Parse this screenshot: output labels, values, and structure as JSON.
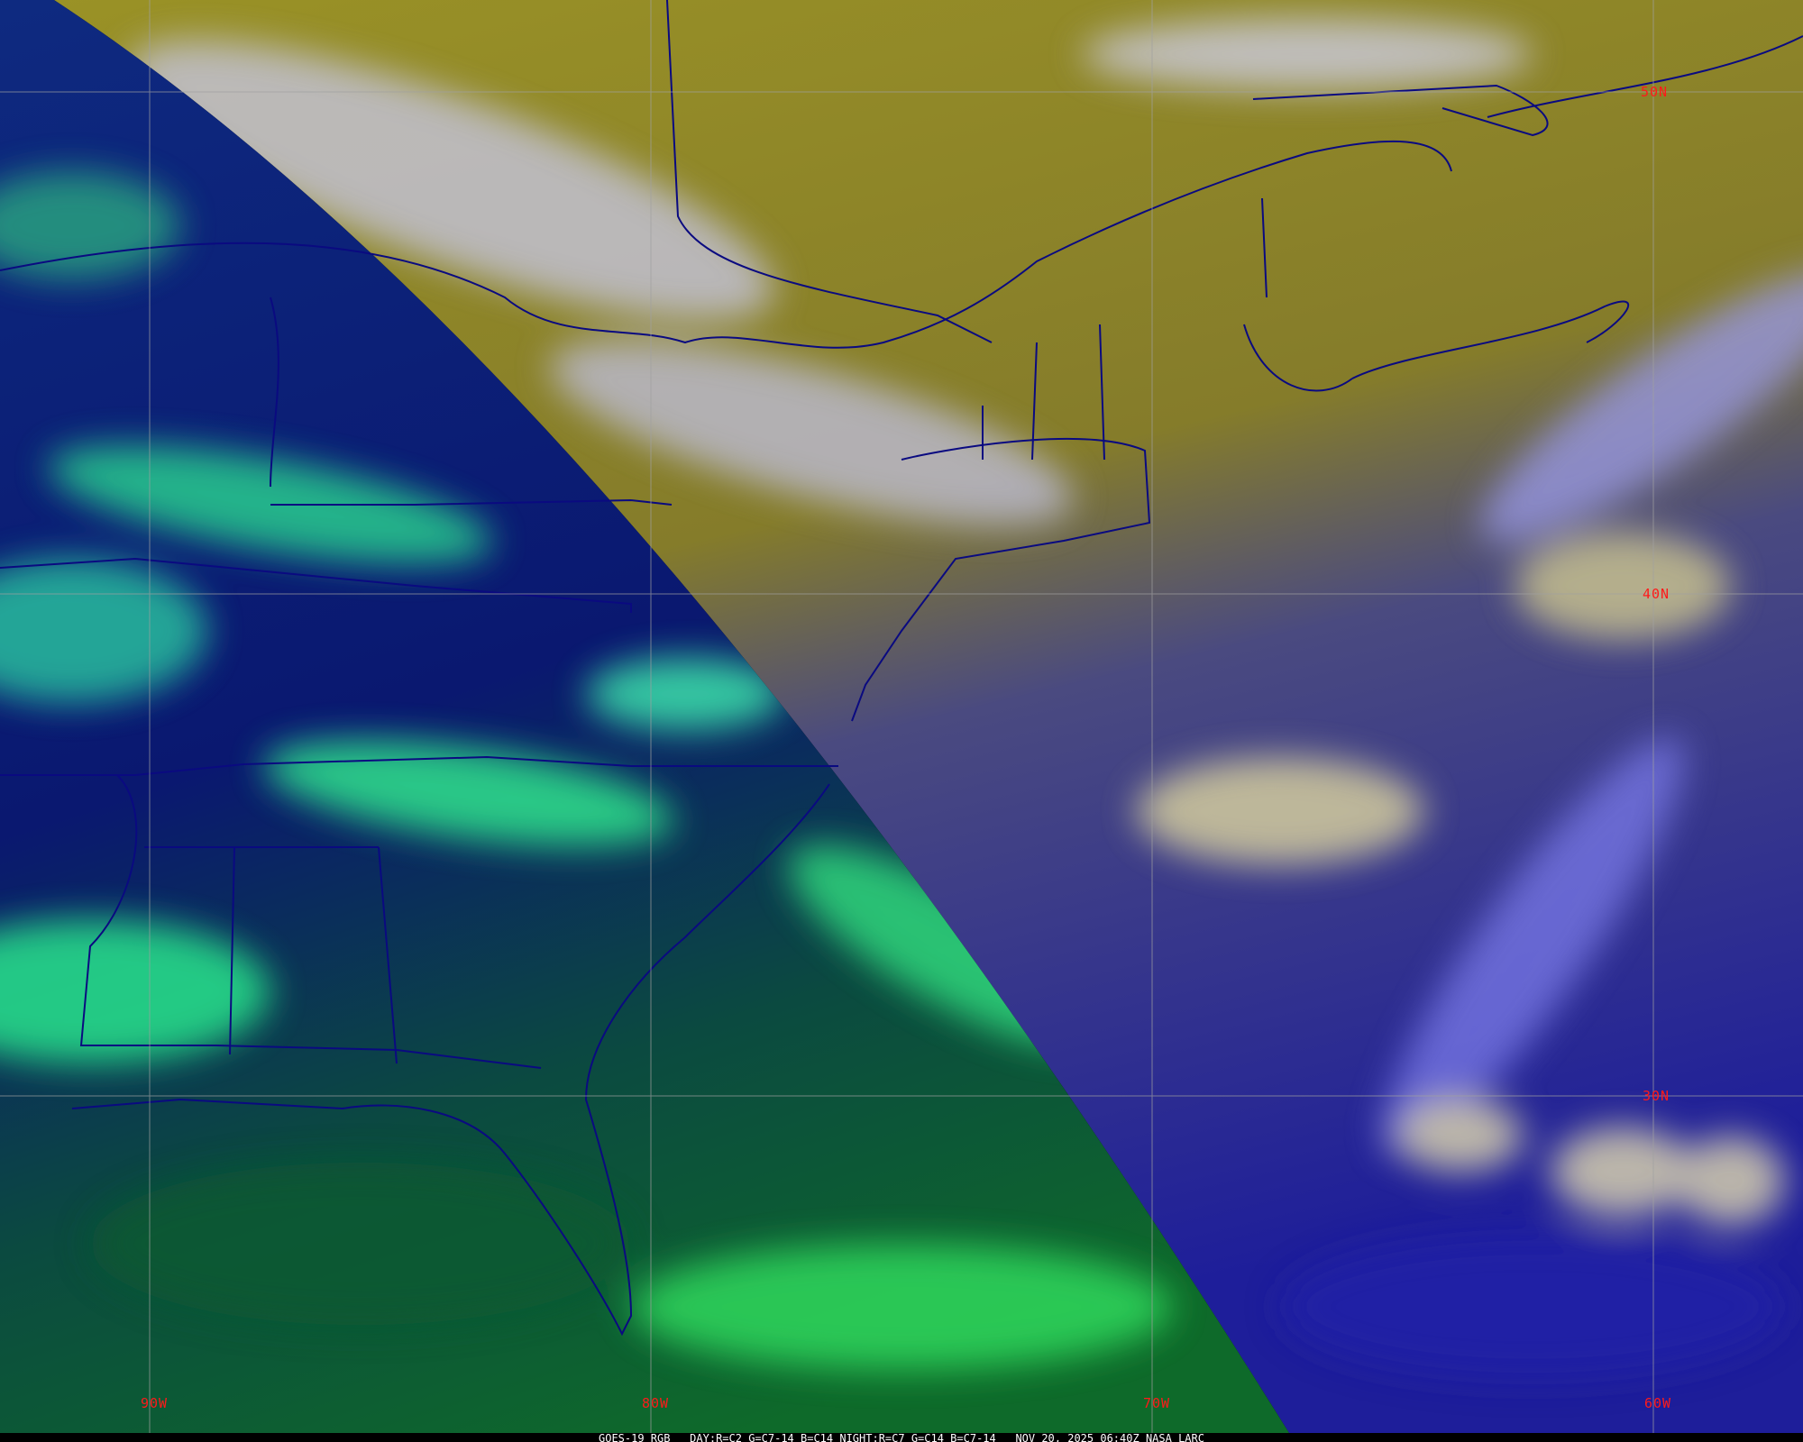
{
  "map": {
    "caption": {
      "satellite": "GOES-19 RGB",
      "day_recipe": "DAY:R=C2 G=C7-14 B=C14",
      "night_recipe": "NIGHT:R=C7 G=C14 B=C7-14",
      "timestamp": "NOV 20, 2025 06:40Z",
      "credit": "NASA LARC"
    },
    "lat_labels": [
      "50N",
      "40N",
      "30N"
    ],
    "lon_labels": [
      "90W",
      "80W",
      "70W",
      "60W"
    ],
    "colors": {
      "label": "#ff1a1a",
      "grid": "#a0a0a0",
      "borders": "#0a0a80",
      "day_land": "#8c8428",
      "night_land": "#0a1a70",
      "night_cloud": "#2aff80",
      "ocean_day": "#2a2aa0"
    }
  }
}
